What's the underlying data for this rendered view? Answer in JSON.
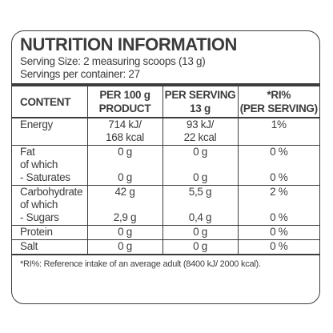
{
  "title": "NUTRITION INFORMATION",
  "serving_size": "Serving Size: 2 measuring scoops (13 g)",
  "servings_per_container": "Servings per container: 27",
  "columns": {
    "content": "CONTENT",
    "per100_line1": "PER 100 g",
    "per100_line2": "PRODUCT",
    "serving_line1": "PER SERVING",
    "serving_line2": "13 g",
    "ri_line1": "*RI%",
    "ri_line2": "(PER SERVING)"
  },
  "rows": {
    "energy": {
      "label": "Energy",
      "per100_l1": "714 kJ/",
      "per100_l2": "168 kcal",
      "serving_l1": "93 kJ/",
      "serving_l2": "22 kcal",
      "ri": "1%"
    },
    "fat": {
      "label": "Fat",
      "per100": "0 g",
      "serving": "0 g",
      "ri": "0 %"
    },
    "fat_of_which": {
      "label": "of which"
    },
    "saturates": {
      "label": "- Saturates",
      "per100": "0 g",
      "serving": "0 g",
      "ri": "0 %"
    },
    "carbohydrate": {
      "label": "Carbohydrate",
      "per100": "42 g",
      "serving": "5,5 g",
      "ri": "2 %"
    },
    "carb_of_which": {
      "label": "of which"
    },
    "sugars": {
      "label": "- Sugars",
      "per100": "2,9 g",
      "serving": "0,4 g",
      "ri": "0 %"
    },
    "protein": {
      "label": "Protein",
      "per100": "0 g",
      "serving": "0 g",
      "ri": "0 %"
    },
    "salt": {
      "label": "Salt",
      "per100": "0 g",
      "serving": "0 g",
      "ri": "0 %"
    }
  },
  "footnote": "*RI%: Reference intake of an average adult (8400 kJ/ 2000 kcal)."
}
